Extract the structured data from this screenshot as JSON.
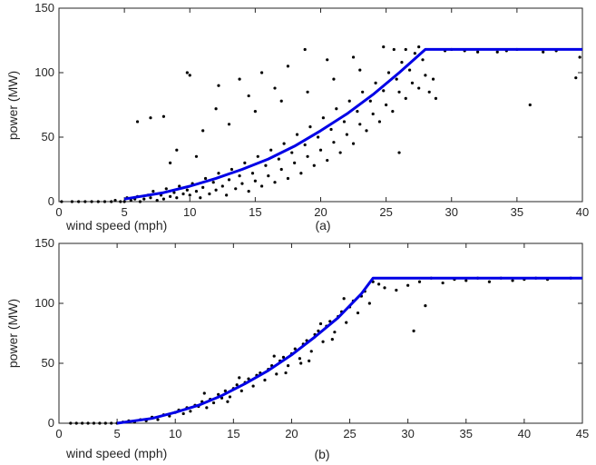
{
  "chart_data": [
    {
      "type": "scatter",
      "panel": "(a)",
      "xlabel": "wind speed (mph)",
      "ylabel": "power (MW)",
      "xlim": [
        0,
        40
      ],
      "ylim": [
        0,
        150
      ],
      "xticks": [
        0,
        5,
        10,
        15,
        20,
        25,
        30,
        35,
        40
      ],
      "yticks": [
        0,
        50,
        100,
        150
      ],
      "fit_curve": {
        "color": "#0000e6",
        "x": [
          5,
          8,
          10,
          12,
          14,
          16,
          18,
          20,
          22,
          24,
          26,
          28,
          40
        ],
        "y": [
          2,
          7,
          12,
          18,
          25,
          33,
          43,
          55,
          68,
          83,
          100,
          118,
          118
        ]
      },
      "series": [
        {
          "color": "#000000",
          "points": [
            [
              0.2,
              0
            ],
            [
              1,
              0
            ],
            [
              1.5,
              0
            ],
            [
              2,
              0
            ],
            [
              2.5,
              0
            ],
            [
              3,
              0
            ],
            [
              3.5,
              0
            ],
            [
              4,
              0
            ],
            [
              4.3,
              1
            ],
            [
              4.7,
              0
            ],
            [
              5,
              0
            ],
            [
              5.2,
              3
            ],
            [
              5.5,
              1
            ],
            [
              5.8,
              2
            ],
            [
              6,
              4
            ],
            [
              6.2,
              0
            ],
            [
              6.5,
              2
            ],
            [
              6.8,
              5
            ],
            [
              7,
              3
            ],
            [
              7.2,
              8
            ],
            [
              7.5,
              1
            ],
            [
              7.8,
              5
            ],
            [
              8,
              2
            ],
            [
              8.2,
              10
            ],
            [
              8.5,
              4
            ],
            [
              8.8,
              7
            ],
            [
              9,
              3
            ],
            [
              9.2,
              12
            ],
            [
              9.5,
              6
            ],
            [
              9.8,
              9
            ],
            [
              10,
              5
            ],
            [
              10.2,
              14
            ],
            [
              10.5,
              8
            ],
            [
              10.8,
              3
            ],
            [
              11,
              11
            ],
            [
              11.2,
              18
            ],
            [
              11.5,
              6
            ],
            [
              11.8,
              15
            ],
            [
              12,
              9
            ],
            [
              12.2,
              22
            ],
            [
              12.5,
              12
            ],
            [
              12.8,
              5
            ],
            [
              13,
              17
            ],
            [
              13.2,
              25
            ],
            [
              13.5,
              10
            ],
            [
              13.8,
              20
            ],
            [
              14,
              14
            ],
            [
              14.2,
              30
            ],
            [
              14.5,
              8
            ],
            [
              14.8,
              22
            ],
            [
              15,
              16
            ],
            [
              15.2,
              35
            ],
            [
              15.5,
              12
            ],
            [
              15.8,
              28
            ],
            [
              16,
              20
            ],
            [
              16.2,
              40
            ],
            [
              16.5,
              15
            ],
            [
              16.8,
              33
            ],
            [
              17,
              25
            ],
            [
              17.2,
              45
            ],
            [
              17.5,
              18
            ],
            [
              17.8,
              38
            ],
            [
              18,
              30
            ],
            [
              18.2,
              52
            ],
            [
              18.5,
              22
            ],
            [
              18.8,
              44
            ],
            [
              19,
              35
            ],
            [
              19.2,
              58
            ],
            [
              19.5,
              28
            ],
            [
              19.8,
              50
            ],
            [
              20,
              40
            ],
            [
              20.2,
              65
            ],
            [
              20.5,
              32
            ],
            [
              20.8,
              56
            ],
            [
              21,
              46
            ],
            [
              21.2,
              72
            ],
            [
              21.5,
              38
            ],
            [
              21.8,
              62
            ],
            [
              22,
              52
            ],
            [
              22.2,
              78
            ],
            [
              22.5,
              45
            ],
            [
              22.8,
              70
            ],
            [
              23,
              60
            ],
            [
              23.2,
              85
            ],
            [
              23.5,
              55
            ],
            [
              23.8,
              78
            ],
            [
              24,
              68
            ],
            [
              24.2,
              92
            ],
            [
              24.5,
              62
            ],
            [
              24.8,
              86
            ],
            [
              25,
              75
            ],
            [
              25.2,
              100
            ],
            [
              25.5,
              70
            ],
            [
              25.8,
              95
            ],
            [
              26,
              85
            ],
            [
              26.2,
              108
            ],
            [
              26.5,
              80
            ],
            [
              26.8,
              102
            ],
            [
              27,
              92
            ],
            [
              27.2,
              115
            ],
            [
              27.5,
              88
            ],
            [
              27.8,
              110
            ],
            [
              28,
              98
            ],
            [
              28.3,
              85
            ],
            [
              28.6,
              95
            ],
            [
              28.8,
              80
            ],
            [
              9.8,
              100
            ],
            [
              10,
              98
            ],
            [
              6,
              62
            ],
            [
              7,
              65
            ],
            [
              8,
              66
            ],
            [
              12.2,
              90
            ],
            [
              13.8,
              95
            ],
            [
              15.5,
              100
            ],
            [
              17.5,
              105
            ],
            [
              18.8,
              118
            ],
            [
              20.5,
              110
            ],
            [
              22.5,
              112
            ],
            [
              24.8,
              120
            ],
            [
              25.6,
              118
            ],
            [
              26.5,
              118
            ],
            [
              27.5,
              120
            ],
            [
              12,
              72
            ],
            [
              14.5,
              82
            ],
            [
              16.5,
              88
            ],
            [
              9,
              40
            ],
            [
              8.5,
              30
            ],
            [
              11,
              55
            ],
            [
              13,
              60
            ],
            [
              10.5,
              35
            ],
            [
              15,
              70
            ],
            [
              17,
              78
            ],
            [
              19,
              85
            ],
            [
              21,
              95
            ],
            [
              23,
              102
            ],
            [
              26,
              38
            ],
            [
              30,
              118
            ],
            [
              32,
              116
            ],
            [
              35,
              118
            ],
            [
              36,
              75
            ],
            [
              37,
              116
            ],
            [
              38,
              117
            ],
            [
              39.5,
              96
            ],
            [
              39.8,
              112
            ],
            [
              29.5,
              117
            ],
            [
              31,
              117
            ],
            [
              33.5,
              116
            ],
            [
              34.2,
              117
            ]
          ]
        }
      ]
    },
    {
      "type": "scatter",
      "panel": "(b)",
      "xlabel": "wind speed (mph)",
      "ylabel": "power (MW)",
      "xlim": [
        0,
        45
      ],
      "ylim": [
        0,
        150
      ],
      "xticks": [
        0,
        5,
        10,
        15,
        20,
        25,
        30,
        35,
        40,
        45
      ],
      "yticks": [
        0,
        50,
        100,
        150
      ],
      "fit_curve": {
        "color": "#0000e6",
        "x": [
          5,
          8,
          10,
          12,
          14,
          16,
          18,
          20,
          22,
          24,
          26,
          27,
          45
        ],
        "y": [
          0,
          4,
          9,
          15,
          23,
          33,
          44,
          57,
          72,
          88,
          108,
          121,
          121
        ]
      },
      "series": [
        {
          "color": "#000000",
          "points": [
            [
              1,
              0
            ],
            [
              1.5,
              0
            ],
            [
              2,
              0
            ],
            [
              2.5,
              0
            ],
            [
              3,
              0
            ],
            [
              3.5,
              0
            ],
            [
              4,
              0
            ],
            [
              4.5,
              0
            ],
            [
              5,
              0
            ],
            [
              5.5,
              1
            ],
            [
              6,
              2
            ],
            [
              6.5,
              1
            ],
            [
              7,
              3
            ],
            [
              7.5,
              2
            ],
            [
              8,
              5
            ],
            [
              8.5,
              3
            ],
            [
              9,
              7
            ],
            [
              9.5,
              6
            ],
            [
              10,
              9
            ],
            [
              10.3,
              11
            ],
            [
              10.7,
              8
            ],
            [
              11,
              13
            ],
            [
              11.3,
              10
            ],
            [
              11.7,
              15
            ],
            [
              12,
              14
            ],
            [
              12.3,
              18
            ],
            [
              12.7,
              13
            ],
            [
              13,
              20
            ],
            [
              13.3,
              17
            ],
            [
              13.7,
              24
            ],
            [
              14,
              21
            ],
            [
              14.3,
              27
            ],
            [
              14.7,
              22
            ],
            [
              15,
              29
            ],
            [
              15.3,
              32
            ],
            [
              15.7,
              27
            ],
            [
              16,
              34
            ],
            [
              16.3,
              37
            ],
            [
              16.7,
              31
            ],
            [
              17,
              40
            ],
            [
              17.3,
              42
            ],
            [
              17.7,
              36
            ],
            [
              18,
              45
            ],
            [
              18.3,
              48
            ],
            [
              18.7,
              41
            ],
            [
              19,
              52
            ],
            [
              19.3,
              55
            ],
            [
              19.7,
              48
            ],
            [
              20,
              58
            ],
            [
              20.3,
              62
            ],
            [
              20.7,
              54
            ],
            [
              21,
              66
            ],
            [
              21.3,
              69
            ],
            [
              21.7,
              60
            ],
            [
              22,
              74
            ],
            [
              22.3,
              77
            ],
            [
              22.7,
              68
            ],
            [
              23,
              81
            ],
            [
              23.3,
              85
            ],
            [
              23.7,
              76
            ],
            [
              24,
              89
            ],
            [
              24.3,
              93
            ],
            [
              24.7,
              84
            ],
            [
              25,
              97
            ],
            [
              25.3,
              102
            ],
            [
              25.7,
              92
            ],
            [
              26,
              106
            ],
            [
              26.3,
              110
            ],
            [
              26.7,
              100
            ],
            [
              27,
              118
            ],
            [
              27.5,
              116
            ],
            [
              28,
              113
            ],
            [
              29,
              111
            ],
            [
              30,
              115
            ],
            [
              31,
              118
            ],
            [
              32,
              121
            ],
            [
              33,
              117
            ],
            [
              34,
              120
            ],
            [
              35,
              119
            ],
            [
              36,
              121
            ],
            [
              37,
              118
            ],
            [
              38,
              121
            ],
            [
              39,
              119
            ],
            [
              40,
              120
            ],
            [
              41,
              121
            ],
            [
              42,
              120
            ],
            [
              44,
              121
            ],
            [
              30.5,
              77
            ],
            [
              31.5,
              98
            ],
            [
              12.5,
              25
            ],
            [
              15.5,
              38
            ],
            [
              18.5,
              56
            ],
            [
              22.5,
              83
            ],
            [
              24.5,
              104
            ],
            [
              23.5,
              70
            ],
            [
              21.5,
              52
            ],
            [
              19.5,
              42
            ],
            [
              14.5,
              18
            ],
            [
              20.8,
              50
            ]
          ]
        }
      ]
    }
  ]
}
